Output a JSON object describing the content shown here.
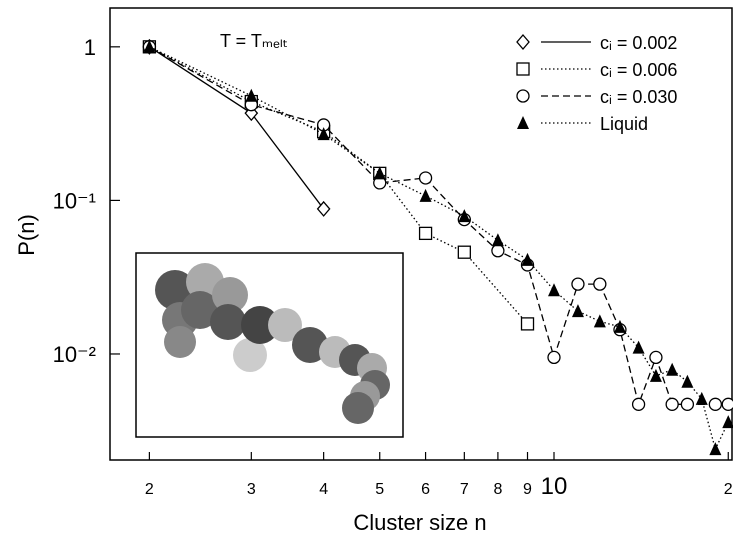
{
  "chart_data": {
    "type": "line",
    "xlabel": "Cluster size n",
    "ylabel": "P(n)",
    "annotation": "T = Tₘₑₗₜ",
    "xlog": true,
    "ylog": true,
    "xlim": [
      1.71,
      20.3
    ],
    "ylim": [
      0.00204,
      1.79
    ],
    "xticks": [
      2,
      3,
      4,
      5,
      6,
      7,
      8,
      9,
      10,
      {
        "value": 20,
        "label": "2"
      }
    ],
    "yticks": [
      {
        "value": 0.01,
        "label": "10⁻²"
      },
      {
        "value": 0.1,
        "label": "10⁻¹"
      },
      1
    ],
    "legend": "upper right",
    "series": [
      {
        "name": "cᵢ = 0.002",
        "color": "#000000",
        "marker": "diamond",
        "line_style": "solid",
        "x": [
          2,
          3,
          4
        ],
        "values": [
          1,
          0.37,
          0.088
        ]
      },
      {
        "name": "cᵢ = 0.006",
        "color": "#000000",
        "marker": "square",
        "line_style": "dotted",
        "x": [
          2,
          3,
          4,
          5,
          6,
          7,
          9
        ],
        "values": [
          1,
          0.44,
          0.28,
          0.15,
          0.061,
          0.046,
          0.0157
        ]
      },
      {
        "name": "cᵢ = 0.030",
        "color": "#000000",
        "marker": "circle",
        "line_style": "dashed",
        "x": [
          2,
          3,
          4,
          5,
          6,
          7,
          8,
          9,
          10,
          11,
          12,
          13,
          14,
          15,
          16,
          17,
          19,
          20
        ],
        "values": [
          1,
          0.42,
          0.31,
          0.13,
          0.14,
          0.075,
          0.047,
          0.038,
          0.0095,
          0.0285,
          0.0285,
          0.0144,
          0.0047,
          0.0095,
          0.0047,
          0.0047,
          0.0047,
          0.0047
        ]
      },
      {
        "name": "Liquid",
        "color": "#000000",
        "marker": "triangle",
        "line_style": "dotted",
        "x": [
          2,
          3,
          4,
          5,
          6,
          7,
          8,
          9,
          10,
          11,
          12,
          13,
          14,
          15,
          16,
          17,
          18,
          19,
          20
        ],
        "values": [
          1,
          0.48,
          0.27,
          0.15,
          0.107,
          0.079,
          0.055,
          0.041,
          0.026,
          0.019,
          0.0163,
          0.015,
          0.011,
          0.0072,
          0.0079,
          0.0066,
          0.0051,
          0.0024,
          0.0036
        ]
      }
    ]
  }
}
